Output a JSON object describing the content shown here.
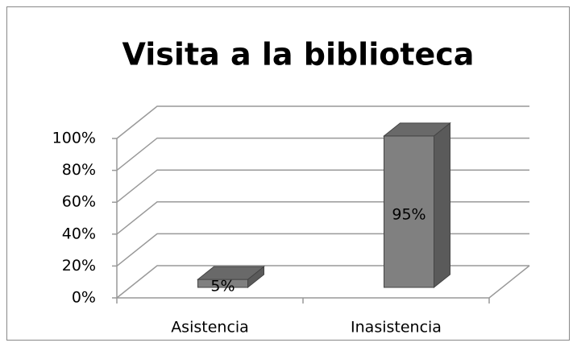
{
  "chart_data": {
    "type": "bar3d",
    "title": "Visita a la biblioteca",
    "categories": [
      "Asistencia",
      "Inasistencia"
    ],
    "values": [
      5,
      95
    ],
    "value_labels": [
      "5%",
      "95%"
    ],
    "color": "#808080",
    "ylim": [
      0,
      100
    ],
    "yticks": [
      {
        "value": 0,
        "label": "0%"
      },
      {
        "value": 20,
        "label": "20%"
      },
      {
        "value": 40,
        "label": "40%"
      },
      {
        "value": 60,
        "label": "60%"
      },
      {
        "value": 80,
        "label": "80%"
      },
      {
        "value": 100,
        "label": "100%"
      }
    ],
    "grid": true
  }
}
